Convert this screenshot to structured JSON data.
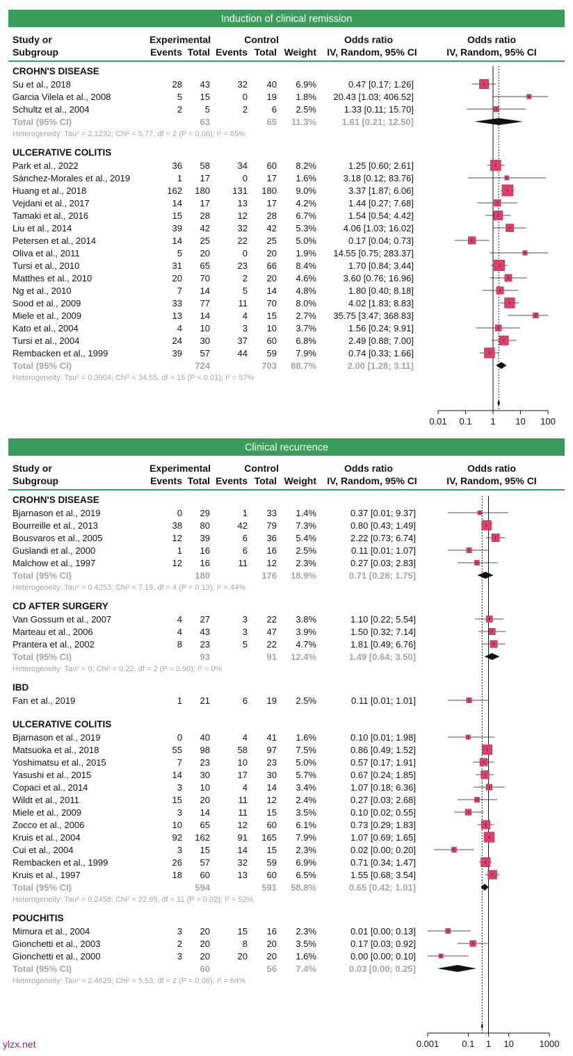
{
  "watermark": "ylzx.net",
  "colors": {
    "banner": "#3a9c5a",
    "marker": "#d9406a",
    "marker_edge": "#a3224a",
    "total_text": "#a6a6a6",
    "het_text": "#a6a6a6",
    "line": "#111111",
    "dotted": "#111111"
  },
  "header": {
    "study_l1": "Study or",
    "study_l2": "Subgroup",
    "experimental": "Experimental",
    "control": "Control",
    "events": "Events",
    "total": "Total",
    "weight": "Weight",
    "or_col_l1": "Odds ratio",
    "or_col_l2": "IV, Random, 95% CI",
    "or_plot_l1": "Odds ratio",
    "or_plot_l2": "IV, Random, 95% CI"
  },
  "chart_data": [
    {
      "type": "forest",
      "title": "Induction of clinical remission",
      "xscale": "log",
      "xlim": [
        0.01,
        100
      ],
      "ticks": [
        "0.01",
        "0.1",
        "1",
        "10",
        "100"
      ],
      "overall_or": 1.61,
      "overall_ci": [
        1.45,
        1.79
      ],
      "subgroups": [
        {
          "name": "CROHN'S DISEASE",
          "studies": [
            {
              "study": "Su et al., 2018",
              "ee": 28,
              "et": 43,
              "ce": 32,
              "ct": 40,
              "weight": "6.9%",
              "ci_text": "0.47 [0.17;   1.26]",
              "or": 0.47,
              "lo": 0.17,
              "hi": 1.26
            },
            {
              "study": "Garcia Vilela et al., 2008",
              "ee": 5,
              "et": 15,
              "ce": 0,
              "ct": 19,
              "weight": "1.8%",
              "ci_text": "20.43 [1.03; 406.52]",
              "or": 20.43,
              "lo": 1.03,
              "hi": 406.52
            },
            {
              "study": "Schultz et al., 2004",
              "ee": 2,
              "et": 5,
              "ce": 2,
              "ct": 6,
              "weight": "2.5%",
              "ci_text": "1.33 [0.11;  15.70]",
              "or": 1.33,
              "lo": 0.11,
              "hi": 15.7
            }
          ],
          "total": {
            "label": "Total (95% CI)",
            "et": 63,
            "ct": 65,
            "weight": "11.3%",
            "ci_text": "1.61 [0.21;  12.50]",
            "or": 1.61,
            "lo": 0.21,
            "hi": 12.5
          },
          "het": "Heterogeneity: Tau² = 2.1232; Chi² = 5.77, df = 2 (P = 0.06); I² = 65%"
        },
        {
          "name": "ULCERATIVE COLITIS",
          "studies": [
            {
              "study": "Park et al., 2022",
              "ee": 36,
              "et": 58,
              "ce": 34,
              "ct": 60,
              "weight": "8.2%",
              "ci_text": "1.25 [0.60;   2.61]",
              "or": 1.25,
              "lo": 0.6,
              "hi": 2.61
            },
            {
              "study": "Sánchez-Morales et al., 2019",
              "ee": 1,
              "et": 17,
              "ce": 0,
              "ct": 17,
              "weight": "1.6%",
              "ci_text": "3.18 [0.12;  83.76]",
              "or": 3.18,
              "lo": 0.12,
              "hi": 83.76
            },
            {
              "study": "Huang et al., 2018",
              "ee": 162,
              "et": 180,
              "ce": 131,
              "ct": 180,
              "weight": "9.0%",
              "ci_text": "3.37 [1.87;   6.06]",
              "or": 3.37,
              "lo": 1.87,
              "hi": 6.06
            },
            {
              "study": "Vejdani et al., 2017",
              "ee": 14,
              "et": 17,
              "ce": 13,
              "ct": 17,
              "weight": "4.2%",
              "ci_text": "1.44 [0.27;   7.68]",
              "or": 1.44,
              "lo": 0.27,
              "hi": 7.68
            },
            {
              "study": "Tamaki et al., 2016",
              "ee": 15,
              "et": 28,
              "ce": 12,
              "ct": 28,
              "weight": "6.7%",
              "ci_text": "1.54 [0.54;   4.42]",
              "or": 1.54,
              "lo": 0.54,
              "hi": 4.42
            },
            {
              "study": "Liu et al., 2014",
              "ee": 39,
              "et": 42,
              "ce": 32,
              "ct": 42,
              "weight": "5.3%",
              "ci_text": "4.06 [1.03;  16.02]",
              "or": 4.06,
              "lo": 1.03,
              "hi": 16.02
            },
            {
              "study": "Petersen et al., 2014",
              "ee": 14,
              "et": 25,
              "ce": 22,
              "ct": 25,
              "weight": "5.0%",
              "ci_text": "0.17 [0.04;   0.73]",
              "or": 0.17,
              "lo": 0.04,
              "hi": 0.73
            },
            {
              "study": "Oliva et al., 2011",
              "ee": 5,
              "et": 20,
              "ce": 0,
              "ct": 20,
              "weight": "1.9%",
              "ci_text": "14.55 [0.75; 283.37]",
              "or": 14.55,
              "lo": 0.75,
              "hi": 283.37
            },
            {
              "study": "Tursi et al., 2010",
              "ee": 31,
              "et": 65,
              "ce": 23,
              "ct": 66,
              "weight": "8.4%",
              "ci_text": "1.70 [0.84;   3.44]",
              "or": 1.7,
              "lo": 0.84,
              "hi": 3.44
            },
            {
              "study": "Matthes et al., 2010",
              "ee": 20,
              "et": 70,
              "ce": 2,
              "ct": 20,
              "weight": "4.6%",
              "ci_text": "3.60 [0.76;  16.96]",
              "or": 3.6,
              "lo": 0.76,
              "hi": 16.96
            },
            {
              "study": "Ng et al., 2010",
              "ee": 7,
              "et": 14,
              "ce": 5,
              "ct": 14,
              "weight": "4.8%",
              "ci_text": "1.80 [0.40;   8.18]",
              "or": 1.8,
              "lo": 0.4,
              "hi": 8.18
            },
            {
              "study": "Sood et al., 2009",
              "ee": 33,
              "et": 77,
              "ce": 11,
              "ct": 70,
              "weight": "8.0%",
              "ci_text": "4.02 [1.83;   8.83]",
              "or": 4.02,
              "lo": 1.83,
              "hi": 8.83
            },
            {
              "study": "Miele et al., 2009",
              "ee": 13,
              "et": 14,
              "ce": 4,
              "ct": 15,
              "weight": "2.7%",
              "ci_text": "35.75 [3.47; 368.83]",
              "or": 35.75,
              "lo": 3.47,
              "hi": 368.83
            },
            {
              "study": "Kato et al., 2004",
              "ee": 4,
              "et": 10,
              "ce": 3,
              "ct": 10,
              "weight": "3.7%",
              "ci_text": "1.56 [0.24;   9.91]",
              "or": 1.56,
              "lo": 0.24,
              "hi": 9.91
            },
            {
              "study": "Tursi et al., 2004",
              "ee": 24,
              "et": 30,
              "ce": 37,
              "ct": 60,
              "weight": "6.8%",
              "ci_text": "2.49 [0.88;   7.00]",
              "or": 2.49,
              "lo": 0.88,
              "hi": 7.0
            },
            {
              "study": "Rembacken et al., 1999",
              "ee": 39,
              "et": 57,
              "ce": 44,
              "ct": 59,
              "weight": "7.9%",
              "ci_text": "0.74 [0.33;   1.66]",
              "or": 0.74,
              "lo": 0.33,
              "hi": 1.66
            }
          ],
          "total": {
            "label": "Total (95% CI)",
            "et": 724,
            "ct": 703,
            "weight": "88.7%",
            "ci_text": "2.00 [1.28;   3.11]",
            "or": 2.0,
            "lo": 1.28,
            "hi": 3.11
          },
          "het": "Heterogeneity: Tau² = 0.3904; Chi² = 34.55, df = 15 (P < 0.01); I² = 57%"
        }
      ]
    },
    {
      "type": "forest",
      "title": "Clinical recurrence",
      "xscale": "log",
      "xlim": [
        0.001,
        1000
      ],
      "ticks": [
        "0.001",
        "0.1",
        "1",
        "10",
        "1000"
      ],
      "tick_values": [
        0.001,
        0.1,
        1,
        10,
        1000
      ],
      "overall_or": 0.48,
      "overall_ci": [
        0.43,
        0.54
      ],
      "subgroups": [
        {
          "name": "CROHN'S DISEASE",
          "studies": [
            {
              "study": "Bjarnason et al., 2019",
              "ee": 0,
              "et": 29,
              "ce": 1,
              "ct": 33,
              "weight": "1.4%",
              "ci_text": "0.37 [0.01; 9.37]",
              "or": 0.37,
              "lo": 0.01,
              "hi": 9.37
            },
            {
              "study": "Bourreille et al., 2013",
              "ee": 38,
              "et": 80,
              "ce": 42,
              "ct": 79,
              "weight": "7.3%",
              "ci_text": "0.80 [0.43; 1.49]",
              "or": 0.8,
              "lo": 0.43,
              "hi": 1.49
            },
            {
              "study": "Bousvaros et al., 2005",
              "ee": 12,
              "et": 39,
              "ce": 6,
              "ct": 36,
              "weight": "5.4%",
              "ci_text": "2.22 [0.73; 6.74]",
              "or": 2.22,
              "lo": 0.73,
              "hi": 6.74
            },
            {
              "study": "Guslandi et al., 2000",
              "ee": 1,
              "et": 16,
              "ce": 6,
              "ct": 16,
              "weight": "2.5%",
              "ci_text": "0.11 [0.01; 1.07]",
              "or": 0.11,
              "lo": 0.01,
              "hi": 1.07
            },
            {
              "study": "Malchow et al., 1997",
              "ee": 12,
              "et": 16,
              "ce": 11,
              "ct": 12,
              "weight": "2.3%",
              "ci_text": "0.27 [0.03; 2.83]",
              "or": 0.27,
              "lo": 0.03,
              "hi": 2.83
            }
          ],
          "total": {
            "label": "Total (95% CI)",
            "et": 180,
            "ct": 176,
            "weight": "18.9%",
            "ci_text": "0.71 [0.28; 1.75]",
            "or": 0.71,
            "lo": 0.28,
            "hi": 1.75
          },
          "het": "Heterogeneity: Tau² = 0.4253; Chi² = 7.19, df = 4 (P = 0.13); I² = 44%"
        },
        {
          "name": "CD AFTER SURGERY",
          "studies": [
            {
              "study": "Van Gossum et al., 2007",
              "ee": 4,
              "et": 27,
              "ce": 3,
              "ct": 22,
              "weight": "3.8%",
              "ci_text": "1.10 [0.22; 5.54]",
              "or": 1.1,
              "lo": 0.22,
              "hi": 5.54
            },
            {
              "study": "Marteau et al., 2006",
              "ee": 4,
              "et": 43,
              "ce": 3,
              "ct": 47,
              "weight": "3.9%",
              "ci_text": "1.50 [0.32; 7.14]",
              "or": 1.5,
              "lo": 0.32,
              "hi": 7.14
            },
            {
              "study": "Prantera et al., 2002",
              "ee": 8,
              "et": 23,
              "ce": 5,
              "ct": 22,
              "weight": "4.7%",
              "ci_text": "1.81 [0.49; 6.76]",
              "or": 1.81,
              "lo": 0.49,
              "hi": 6.76
            }
          ],
          "total": {
            "label": "Total (95% CI)",
            "et": 93,
            "ct": 91,
            "weight": "12.4%",
            "ci_text": "1.49 [0.64; 3.50]",
            "or": 1.49,
            "lo": 0.64,
            "hi": 3.5
          },
          "het": "Heterogeneity: Tau² = 0; Chi² = 0.22, df = 2 (P = 0.90); I² = 0%"
        },
        {
          "name": "IBD",
          "studies": [
            {
              "study": "Fan et al., 2019",
              "ee": 1,
              "et": 21,
              "ce": 6,
              "ct": 19,
              "weight": "2.5%",
              "ci_text": "0.11 [0.01; 1.01]",
              "or": 0.11,
              "lo": 0.01,
              "hi": 1.01
            }
          ]
        },
        {
          "name": "ULCERATIVE COLITIS",
          "studies": [
            {
              "study": "Bjarnason et al., 2019",
              "ee": 0,
              "et": 40,
              "ce": 4,
              "ct": 41,
              "weight": "1.6%",
              "ci_text": "0.10 [0.01; 1.98]",
              "or": 0.1,
              "lo": 0.01,
              "hi": 1.98
            },
            {
              "study": "Matsuoka et al., 2018",
              "ee": 55,
              "et": 98,
              "ce": 58,
              "ct": 97,
              "weight": "7.5%",
              "ci_text": "0.86 [0.49; 1.52]",
              "or": 0.86,
              "lo": 0.49,
              "hi": 1.52
            },
            {
              "study": "Yoshimatsu et al., 2015",
              "ee": 7,
              "et": 23,
              "ce": 10,
              "ct": 23,
              "weight": "5.0%",
              "ci_text": "0.57 [0.17; 1.91]",
              "or": 0.57,
              "lo": 0.17,
              "hi": 1.91
            },
            {
              "study": "Yasushi et al., 2015",
              "ee": 14,
              "et": 30,
              "ce": 17,
              "ct": 30,
              "weight": "5.7%",
              "ci_text": "0.67 [0.24; 1.85]",
              "or": 0.67,
              "lo": 0.24,
              "hi": 1.85
            },
            {
              "study": "Copaci et al., 2014",
              "ee": 3,
              "et": 10,
              "ce": 4,
              "ct": 14,
              "weight": "3.4%",
              "ci_text": "1.07 [0.18; 6.36]",
              "or": 1.07,
              "lo": 0.18,
              "hi": 6.36
            },
            {
              "study": "Wildt et al., 2011",
              "ee": 15,
              "et": 20,
              "ce": 11,
              "ct": 12,
              "weight": "2.4%",
              "ci_text": "0.27 [0.03; 2.68]",
              "or": 0.27,
              "lo": 0.03,
              "hi": 2.68
            },
            {
              "study": "Miele et al., 2009",
              "ee": 3,
              "et": 14,
              "ce": 11,
              "ct": 15,
              "weight": "3.5%",
              "ci_text": "0.10 [0.02; 0.55]",
              "or": 0.1,
              "lo": 0.02,
              "hi": 0.55
            },
            {
              "study": "Zocco et al., 2006",
              "ee": 10,
              "et": 65,
              "ce": 12,
              "ct": 60,
              "weight": "6.1%",
              "ci_text": "0.73 [0.29; 1.83]",
              "or": 0.73,
              "lo": 0.29,
              "hi": 1.83
            },
            {
              "study": "Kruis et al., 2004",
              "ee": 92,
              "et": 162,
              "ce": 91,
              "ct": 165,
              "weight": "7.9%",
              "ci_text": "1.07 [0.69; 1.65]",
              "or": 1.07,
              "lo": 0.69,
              "hi": 1.65
            },
            {
              "study": "Cui et al., 2004",
              "ee": 3,
              "et": 15,
              "ce": 14,
              "ct": 15,
              "weight": "2.3%",
              "ci_text": "0.02 [0.00; 0.20]",
              "or": 0.02,
              "lo": 0.002,
              "hi": 0.2
            },
            {
              "study": "Rembacken et al., 1999",
              "ee": 26,
              "et": 57,
              "ce": 32,
              "ct": 59,
              "weight": "6.9%",
              "ci_text": "0.71 [0.34; 1.47]",
              "or": 0.71,
              "lo": 0.34,
              "hi": 1.47
            },
            {
              "study": "Kruis et al., 1997",
              "ee": 18,
              "et": 60,
              "ce": 13,
              "ct": 60,
              "weight": "6.5%",
              "ci_text": "1.55 [0.68; 3.54]",
              "or": 1.55,
              "lo": 0.68,
              "hi": 3.54
            }
          ],
          "total": {
            "label": "Total (95% CI)",
            "et": 594,
            "ct": 591,
            "weight": "58.8%",
            "ci_text": "0.65 [0.42; 1.01]",
            "or": 0.65,
            "lo": 0.42,
            "hi": 1.01
          },
          "het": "Heterogeneity: Tau² = 0.2458; Chi² = 22.99, df = 11 (P = 0.02); I² = 52%"
        },
        {
          "name": "POUCHITIS",
          "studies": [
            {
              "study": "Mimura et al., 2004",
              "ee": 3,
              "et": 20,
              "ce": 15,
              "ct": 16,
              "weight": "2.3%",
              "ci_text": "0.01 [0.00; 0.13]",
              "or": 0.01,
              "lo": 0.001,
              "hi": 0.13
            },
            {
              "study": "Gionchetti et al., 2003",
              "ee": 2,
              "et": 20,
              "ce": 8,
              "ct": 20,
              "weight": "3.5%",
              "ci_text": "0.17 [0.03; 0.92]",
              "or": 0.17,
              "lo": 0.03,
              "hi": 0.92
            },
            {
              "study": "Gionchetti et al., 2000",
              "ee": 3,
              "et": 20,
              "ce": 20,
              "ct": 20,
              "weight": "1.6%",
              "ci_text": "0.00 [0.00; 0.10]",
              "or": 0.0045,
              "lo": 0.0002,
              "hi": 0.1
            }
          ],
          "total": {
            "label": "Total (95% CI)",
            "et": 60,
            "ct": 56,
            "weight": "7.4%",
            "ci_text": "0.03 [0.00; 0.25]",
            "or": 0.03,
            "lo": 0.003,
            "hi": 0.25
          },
          "het": "Heterogeneity: Tau² = 2.4629; Chi² = 5.53, df = 2 (P = 0.06); I² = 64%"
        }
      ]
    }
  ]
}
